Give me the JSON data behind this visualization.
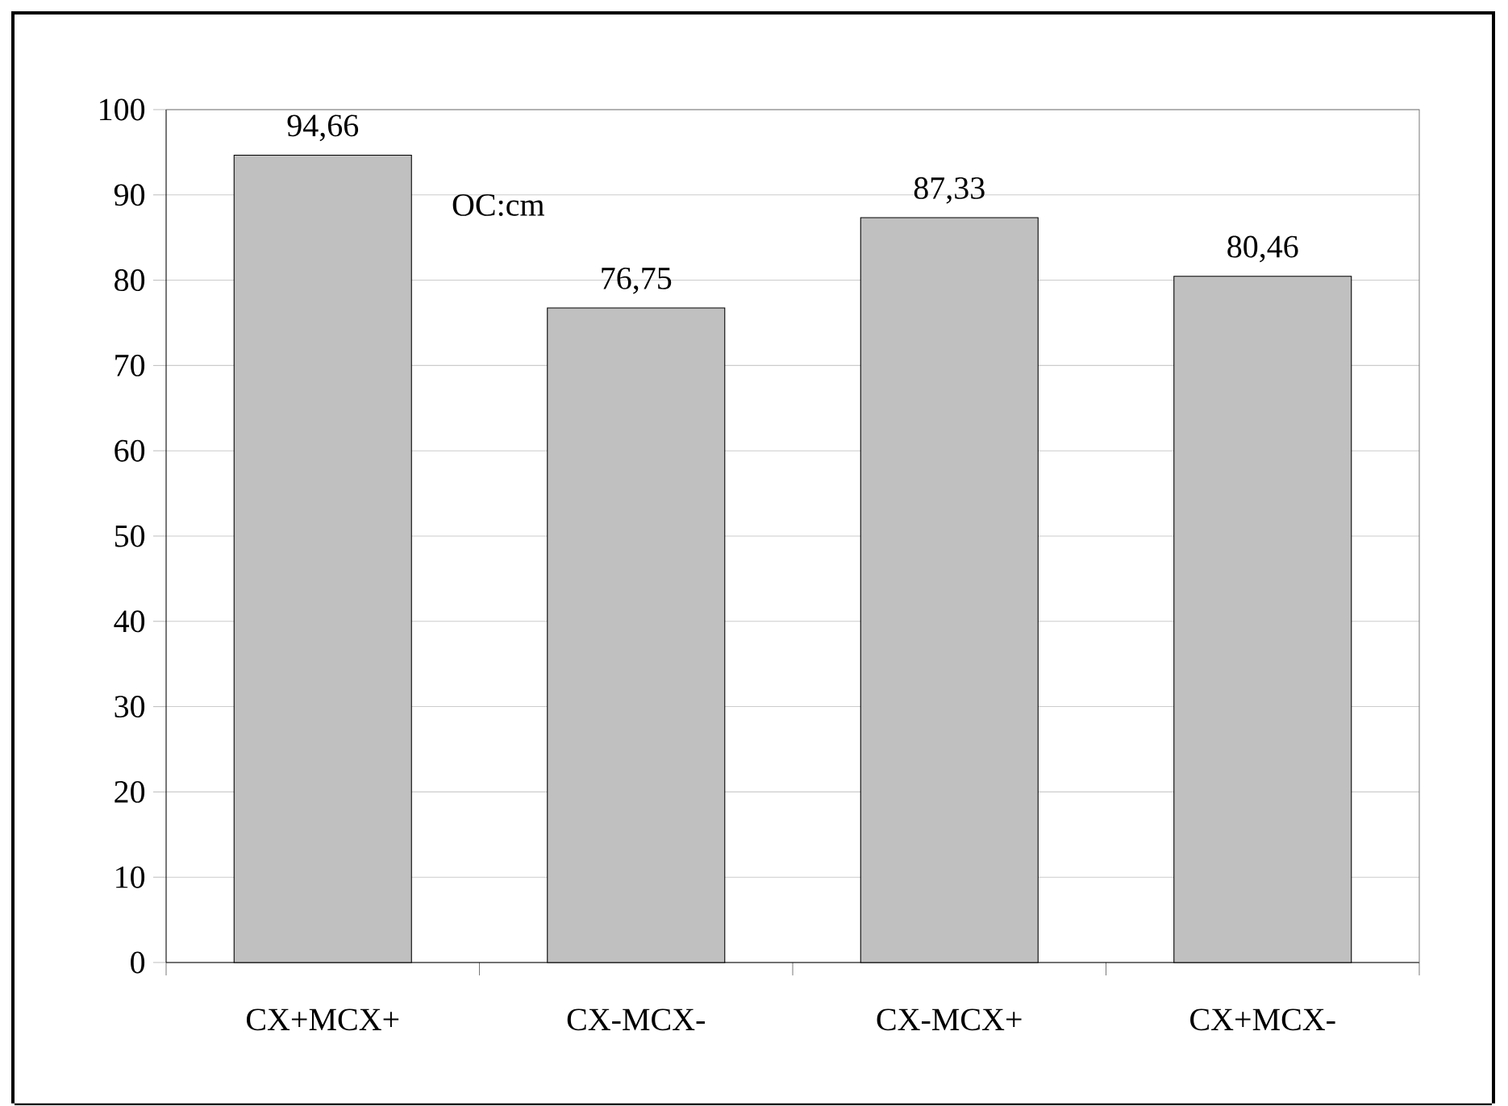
{
  "chart_data": {
    "type": "bar",
    "categories": [
      "CX+MCX+",
      "CX-MCX-",
      "CX-MCX+",
      "CX+MCX-"
    ],
    "values": [
      94.66,
      76.75,
      87.33,
      80.46
    ],
    "value_labels": [
      "94,66",
      "76,75",
      "87,33",
      "80,46"
    ],
    "color": "#c0c0c0",
    "ylim": [
      0,
      100
    ],
    "yticks": [
      0,
      10,
      20,
      30,
      40,
      50,
      60,
      70,
      80,
      90,
      100
    ],
    "grid": "y",
    "annotations": [
      "OC:cm"
    ]
  }
}
